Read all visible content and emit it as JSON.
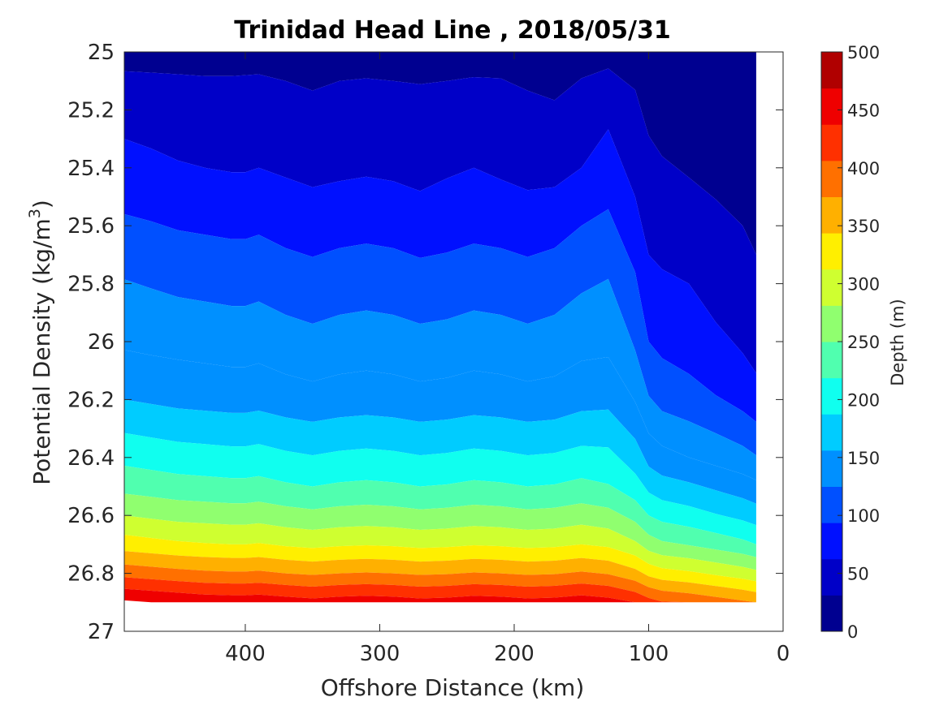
{
  "chart_data": {
    "type": "heatmap",
    "subtype": "filled-contour",
    "title": "Trinidad Head Line , 2018/05/31",
    "xlabel": "Offshore Distance (km)",
    "ylabel_main": "Potential Density (kg/m",
    "ylabel_sup": "3",
    "ylabel_close": ")",
    "x_reversed": true,
    "y_reversed": true,
    "xlim": [
      0,
      490
    ],
    "ylim": [
      25,
      27
    ],
    "x_ticks": [
      400,
      300,
      200,
      100,
      0
    ],
    "x_tick_labels": [
      "400",
      "300",
      "200",
      "100",
      "0"
    ],
    "y_ticks": [
      25,
      25.2,
      25.4,
      25.6,
      25.8,
      26,
      26.2,
      26.4,
      26.6,
      26.8,
      27
    ],
    "y_tick_labels": [
      "25",
      "25.2",
      "25.4",
      "25.6",
      "25.8",
      "26",
      "26.2",
      "26.4",
      "26.6",
      "26.8",
      "27"
    ],
    "colorbar": {
      "label": "Depth (m)",
      "range": [
        0,
        500
      ],
      "ticks": [
        0,
        50,
        100,
        150,
        200,
        250,
        300,
        350,
        400,
        450,
        500
      ],
      "tick_labels": [
        "0",
        "50",
        "100",
        "150",
        "200",
        "250",
        "300",
        "350",
        "400",
        "450",
        "500"
      ],
      "colors": [
        "#000090",
        "#0000c8",
        "#0010ff",
        "#0050ff",
        "#0090ff",
        "#00ccff",
        "#10ffef",
        "#50ffaf",
        "#90ff6f",
        "#cfff30",
        "#ffef00",
        "#ffb000",
        "#ff7000",
        "#ff3000",
        "#ef0000",
        "#b00000"
      ]
    },
    "contour_levels_m": [
      0,
      20,
      50,
      80,
      110,
      140,
      170,
      200,
      230,
      260,
      290,
      320,
      350,
      380,
      410,
      440,
      470
    ],
    "station_distances_km": [
      490,
      470,
      450,
      430,
      410,
      400,
      390,
      370,
      350,
      330,
      310,
      290,
      270,
      250,
      230,
      210,
      190,
      170,
      150,
      130,
      110,
      100,
      90,
      70,
      50,
      30,
      20
    ],
    "depth_at_sigma": [
      {
        "sigma": 25.0,
        "depth_m": [
          10,
          10,
          10,
          10,
          10,
          10,
          10,
          10,
          10,
          10,
          10,
          10,
          10,
          10,
          10,
          10,
          10,
          10,
          10,
          10,
          5,
          0,
          0,
          0,
          5,
          8,
          8
        ]
      },
      {
        "sigma": 25.2,
        "depth_m": [
          40,
          38,
          36,
          34,
          34,
          35,
          36,
          30,
          25,
          30,
          32,
          30,
          28,
          30,
          33,
          32,
          25,
          22,
          32,
          45,
          28,
          16,
          12,
          8,
          5,
          4,
          3
        ]
      },
      {
        "sigma": 25.4,
        "depth_m": [
          60,
          56,
          52,
          50,
          48,
          48,
          50,
          46,
          42,
          44,
          46,
          44,
          40,
          46,
          50,
          45,
          40,
          40,
          50,
          60,
          40,
          25,
          22,
          18,
          14,
          10,
          8
        ]
      },
      {
        "sigma": 25.6,
        "depth_m": [
          85,
          82,
          78,
          76,
          74,
          74,
          76,
          70,
          66,
          70,
          72,
          70,
          65,
          68,
          72,
          70,
          66,
          70,
          80,
          88,
          60,
          40,
          35,
          30,
          25,
          20,
          15
        ]
      },
      {
        "sigma": 25.8,
        "depth_m": [
          112,
          108,
          104,
          102,
          100,
          100,
          102,
          96,
          92,
          96,
          98,
          96,
          92,
          94,
          98,
          96,
          92,
          96,
          106,
          112,
          85,
          60,
          55,
          50,
          40,
          30,
          25
        ]
      },
      {
        "sigma": 26.0,
        "depth_m": [
          135,
          132,
          130,
          128,
          126,
          126,
          128,
          122,
          118,
          122,
          124,
          122,
          118,
          120,
          124,
          122,
          118,
          122,
          130,
          132,
          105,
          80,
          72,
          65,
          55,
          45,
          38
        ]
      },
      {
        "sigma": 26.2,
        "depth_m": [
          170,
          166,
          162,
          160,
          158,
          158,
          160,
          154,
          150,
          154,
          156,
          154,
          150,
          152,
          156,
          154,
          150,
          152,
          160,
          162,
          138,
          112,
          100,
          92,
          82,
          70,
          60
        ]
      },
      {
        "sigma": 26.4,
        "depth_m": [
          222,
          218,
          214,
          212,
          210,
          210,
          212,
          206,
          202,
          206,
          208,
          206,
          202,
          204,
          208,
          206,
          202,
          204,
          210,
          208,
          185,
          160,
          150,
          140,
          130,
          120,
          112
        ]
      },
      {
        "sigma": 26.5,
        "depth_m": [
          250,
          246,
          242,
          240,
          238,
          238,
          240,
          234,
          230,
          234,
          236,
          234,
          230,
          232,
          236,
          234,
          230,
          232,
          238,
          232,
          212,
          192,
          182,
          175,
          165,
          155,
          148
        ]
      },
      {
        "sigma": 26.6,
        "depth_m": [
          290,
          285,
          280,
          278,
          276,
          276,
          278,
          272,
          268,
          272,
          274,
          272,
          268,
          270,
          274,
          272,
          268,
          270,
          276,
          270,
          250,
          230,
          220,
          212,
          202,
          192,
          185
        ]
      },
      {
        "sigma": 26.7,
        "depth_m": [
          335,
          330,
          325,
          322,
          320,
          320,
          322,
          316,
          312,
          316,
          318,
          316,
          312,
          314,
          318,
          316,
          312,
          314,
          320,
          314,
          295,
          275,
          265,
          258,
          248,
          238,
          230
        ]
      },
      {
        "sigma": 26.8,
        "depth_m": [
          400,
          395,
          390,
          386,
          384,
          384,
          386,
          380,
          376,
          380,
          382,
          380,
          376,
          378,
          382,
          380,
          376,
          378,
          384,
          378,
          360,
          342,
          332,
          325,
          315,
          305,
          298
        ]
      },
      {
        "sigma": 26.9,
        "depth_m": [
          475,
          470,
          465,
          460,
          458,
          458,
          460,
          455,
          450,
          455,
          457,
          455,
          450,
          452,
          457,
          455,
          450,
          452,
          458,
          452,
          438,
          422,
          412,
          405,
          395,
          385,
          378
        ]
      }
    ]
  }
}
